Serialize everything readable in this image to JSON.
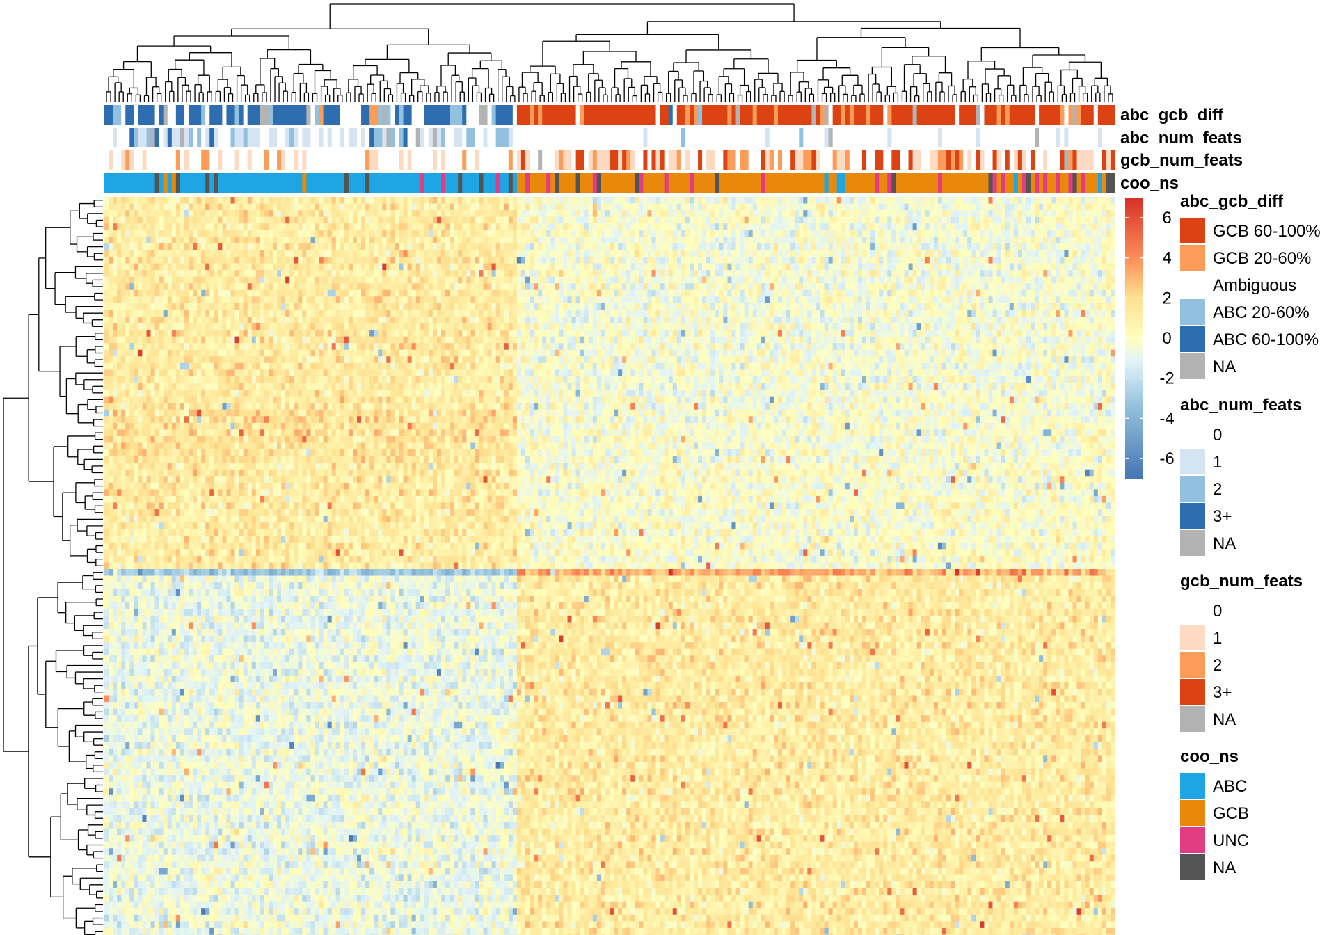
{
  "chart_data": {
    "type": "heatmap",
    "title": "",
    "xlabel": "",
    "ylabel": "",
    "columns_count": 240,
    "rows_count": 112,
    "color_scale": {
      "min": -7,
      "max": 7,
      "ticks": [
        6,
        4,
        2,
        0,
        -2,
        -4,
        -6
      ],
      "tick_labels": [
        "6",
        "4",
        "2",
        "0",
        "-2",
        "-4",
        "-6"
      ],
      "stops": [
        {
          "value": -7,
          "color": "#4575b4"
        },
        {
          "value": -3.5,
          "color": "#91bfdb"
        },
        {
          "value": -1.2,
          "color": "#e0f3f8"
        },
        {
          "value": 0,
          "color": "#ffffbf"
        },
        {
          "value": 2,
          "color": "#fee090"
        },
        {
          "value": 4,
          "color": "#fc8d59"
        },
        {
          "value": 7,
          "color": "#d73027"
        }
      ]
    },
    "column_groups": [
      {
        "name": "ABC",
        "start": 0,
        "end": 98
      },
      {
        "name": "GCB",
        "start": 98,
        "end": 240
      }
    ],
    "row_clusters": [
      {
        "start": 0,
        "end": 32,
        "abc_mean": 1.2,
        "gcb_mean": -0.3
      },
      {
        "start": 32,
        "end": 40,
        "abc_mean": 1.6,
        "gcb_mean": -0.2
      },
      {
        "start": 40,
        "end": 56,
        "abc_mean": 1.2,
        "gcb_mean": -0.1
      },
      {
        "start": 56,
        "end": 57,
        "abc_mean": -3.0,
        "gcb_mean": 3.2
      },
      {
        "start": 57,
        "end": 112,
        "abc_mean": -0.7,
        "gcb_mean": 1.2
      }
    ],
    "annotations": [
      {
        "label": "abc_gcb_diff"
      },
      {
        "label": "abc_num_feats"
      },
      {
        "label": "gcb_num_feats"
      },
      {
        "label": "coo_ns"
      }
    ]
  },
  "legends": [
    {
      "title": "abc_gcb_diff",
      "items": [
        {
          "label": "GCB 60-100%",
          "color": "#dd4312"
        },
        {
          "label": "GCB 20-60%",
          "color": "#fb9d59"
        },
        {
          "label": "Ambiguous",
          "color": "#ffffff"
        },
        {
          "label": "ABC 20-60%",
          "color": "#92c0df"
        },
        {
          "label": "ABC 60-100%",
          "color": "#2d6db0"
        },
        {
          "label": "NA",
          "color": "#b3b3b3"
        }
      ]
    },
    {
      "title": "abc_num_feats",
      "items": [
        {
          "label": "0",
          "color": "#ffffff"
        },
        {
          "label": "1",
          "color": "#d5e4f3"
        },
        {
          "label": "2",
          "color": "#92c0df"
        },
        {
          "label": "3+",
          "color": "#2d6db0"
        },
        {
          "label": "NA",
          "color": "#b3b3b3"
        }
      ]
    },
    {
      "title": "gcb_num_feats",
      "items": [
        {
          "label": "0",
          "color": "#ffffff"
        },
        {
          "label": "1",
          "color": "#fddbc3"
        },
        {
          "label": "2",
          "color": "#fb9d59"
        },
        {
          "label": "3+",
          "color": "#dd4312"
        },
        {
          "label": "NA",
          "color": "#b3b3b3"
        }
      ]
    },
    {
      "title": "coo_ns",
      "items": [
        {
          "label": "ABC",
          "color": "#1ea5e4"
        },
        {
          "label": "GCB",
          "color": "#e8890c"
        },
        {
          "label": "UNC",
          "color": "#e23c83"
        },
        {
          "label": "NA",
          "color": "#545454"
        }
      ]
    }
  ]
}
